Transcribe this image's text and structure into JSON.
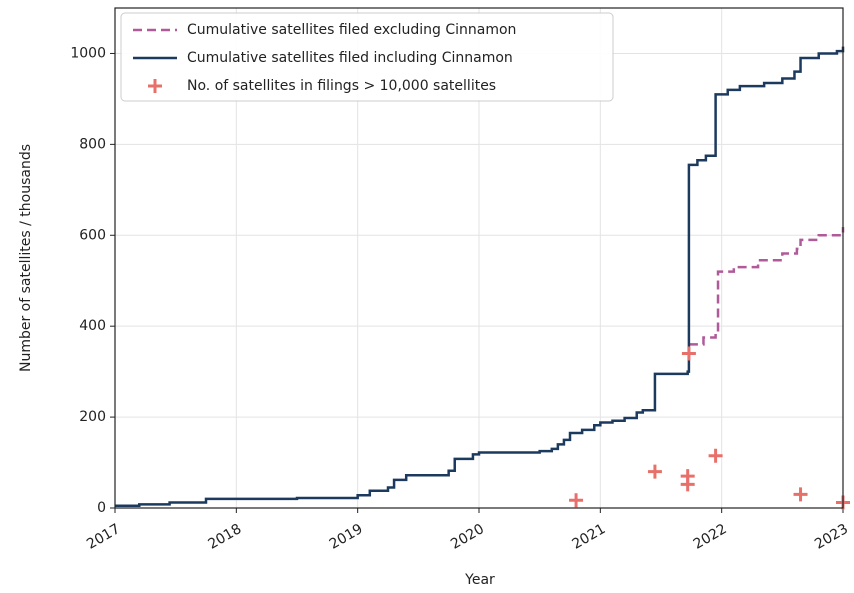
{
  "chart_data": {
    "type": "line",
    "drawstyle": "steps-post",
    "xlabel": "Year",
    "ylabel": "Number of satellites / thousands",
    "xlim": [
      2017,
      2023
    ],
    "xticks": [
      2017,
      2018,
      2019,
      2020,
      2021,
      2022,
      2023
    ],
    "ylim": [
      0,
      1100
    ],
    "yticks": [
      0,
      200,
      400,
      600,
      800,
      1000
    ],
    "grid": true,
    "legend": "upper left",
    "series": [
      {
        "name": "Cumulative satellites filed excluding Cinnamon",
        "color": "#b05a9a",
        "dash": true,
        "kind": "line",
        "x": [
          2021.73,
          2021.85,
          2021.95,
          2021.97,
          2022.1,
          2022.3,
          2022.5,
          2022.62,
          2022.65,
          2022.8,
          2023.0
        ],
        "values": [
          360,
          375,
          385,
          520,
          530,
          545,
          560,
          570,
          590,
          600,
          618
        ]
      },
      {
        "name": "Cumulative satellites filed including Cinnamon",
        "color": "#1c3a5e",
        "dash": false,
        "kind": "line",
        "x": [
          2017.0,
          2017.2,
          2017.45,
          2017.75,
          2018.5,
          2019.0,
          2019.1,
          2019.25,
          2019.3,
          2019.4,
          2019.75,
          2019.8,
          2019.95,
          2020.0,
          2020.5,
          2020.6,
          2020.65,
          2020.7,
          2020.75,
          2020.85,
          2020.95,
          2021.0,
          2021.1,
          2021.2,
          2021.3,
          2021.35,
          2021.45,
          2021.72,
          2021.73,
          2021.8,
          2021.87,
          2021.95,
          2022.05,
          2022.15,
          2022.35,
          2022.5,
          2022.6,
          2022.65,
          2022.8,
          2022.95,
          2023.0
        ],
        "values": [
          5,
          8,
          12,
          20,
          22,
          28,
          38,
          45,
          62,
          72,
          82,
          108,
          118,
          122,
          125,
          130,
          140,
          150,
          165,
          172,
          182,
          188,
          192,
          198,
          210,
          215,
          295,
          300,
          755,
          765,
          775,
          910,
          920,
          928,
          935,
          945,
          960,
          990,
          1000,
          1005,
          1015
        ]
      },
      {
        "name": "No. of satellites in filings > 10,000 satellites",
        "color": "#e8706a",
        "kind": "scatter",
        "x": [
          2020.8,
          2021.45,
          2021.72,
          2021.72,
          2021.73,
          2021.95,
          2022.65,
          2023.0
        ],
        "values": [
          17,
          80,
          70,
          52,
          340,
          115,
          30,
          12
        ]
      }
    ]
  }
}
